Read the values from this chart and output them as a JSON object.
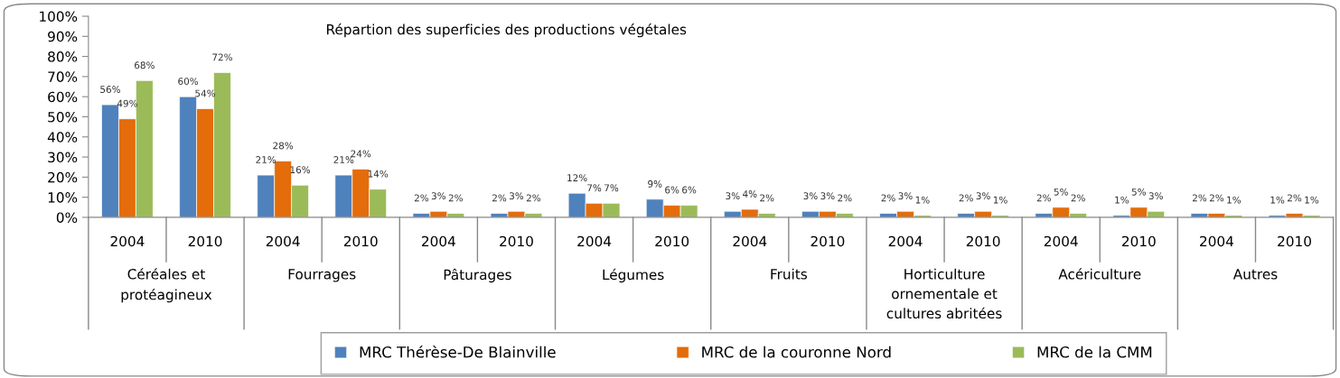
{
  "chart_data": {
    "type": "bar",
    "title": "Répartion des superficies des productions végétales",
    "categories": [
      "2004",
      "2010",
      "2004",
      "2010",
      "2004",
      "2010",
      "2004",
      "2010",
      "2004",
      "2010",
      "2004",
      "2010",
      "2004",
      "2010",
      "2004",
      "2010"
    ],
    "annotations": [
      "Céréales et\nprotéagineux",
      "Fourrages",
      "Pâturages",
      "Légumes",
      "Fruits",
      "Horticulture\nornementale et\ncultures abritées",
      "Acériculture",
      "Autres"
    ],
    "series": [
      {
        "name": "MRC Thérèse-De Blainville",
        "color": "#4f81bd",
        "values": [
          56,
          60,
          21,
          21,
          2,
          2,
          12,
          9,
          3,
          3,
          2,
          2,
          2,
          1,
          2,
          1
        ],
        "value_labels": [
          "56%",
          "60%",
          "21%",
          "21%",
          "2%",
          "2%",
          "12%",
          "9%",
          "3%",
          "3%",
          "2%",
          "2%",
          "2%",
          "1%",
          "2%",
          "1%"
        ]
      },
      {
        "name": "MRC de la couronne Nord",
        "color": "#e46c0a",
        "values": [
          49,
          54,
          28,
          24,
          3,
          3,
          7,
          6,
          4,
          3,
          3,
          3,
          5,
          5,
          2,
          2
        ],
        "value_labels": [
          "49%",
          "54%",
          "28%",
          "24%",
          "3%",
          "3%",
          "7%",
          "6%",
          "4%",
          "3%",
          "3%",
          "3%",
          "5%",
          "5%",
          "2%",
          "2%"
        ]
      },
      {
        "name": "MRC de la CMM",
        "color": "#9bbb59",
        "values": [
          68,
          72,
          16,
          14,
          2,
          2,
          7,
          6,
          2,
          2,
          1,
          1,
          2,
          3,
          1,
          1
        ],
        "value_labels": [
          "68%",
          "72%",
          "16%",
          "14%",
          "2%",
          "2%",
          "7%",
          "6%",
          "2%",
          "2%",
          "1%",
          "1%",
          "2%",
          "3%",
          "1%",
          "1%"
        ]
      }
    ],
    "ylim": [
      0,
      100
    ],
    "yticks": [
      {
        "value": 0,
        "label": "0%"
      },
      {
        "value": 10,
        "label": "10%"
      },
      {
        "value": 20,
        "label": "20%"
      },
      {
        "value": 30,
        "label": "30%"
      },
      {
        "value": 40,
        "label": "40%"
      },
      {
        "value": 50,
        "label": "50%"
      },
      {
        "value": 60,
        "label": "60%"
      },
      {
        "value": 70,
        "label": "70%"
      },
      {
        "value": 80,
        "label": "80%"
      },
      {
        "value": 90,
        "label": "90%"
      },
      {
        "value": 100,
        "label": "100%"
      }
    ],
    "legend": "bottom",
    "grid": false
  }
}
